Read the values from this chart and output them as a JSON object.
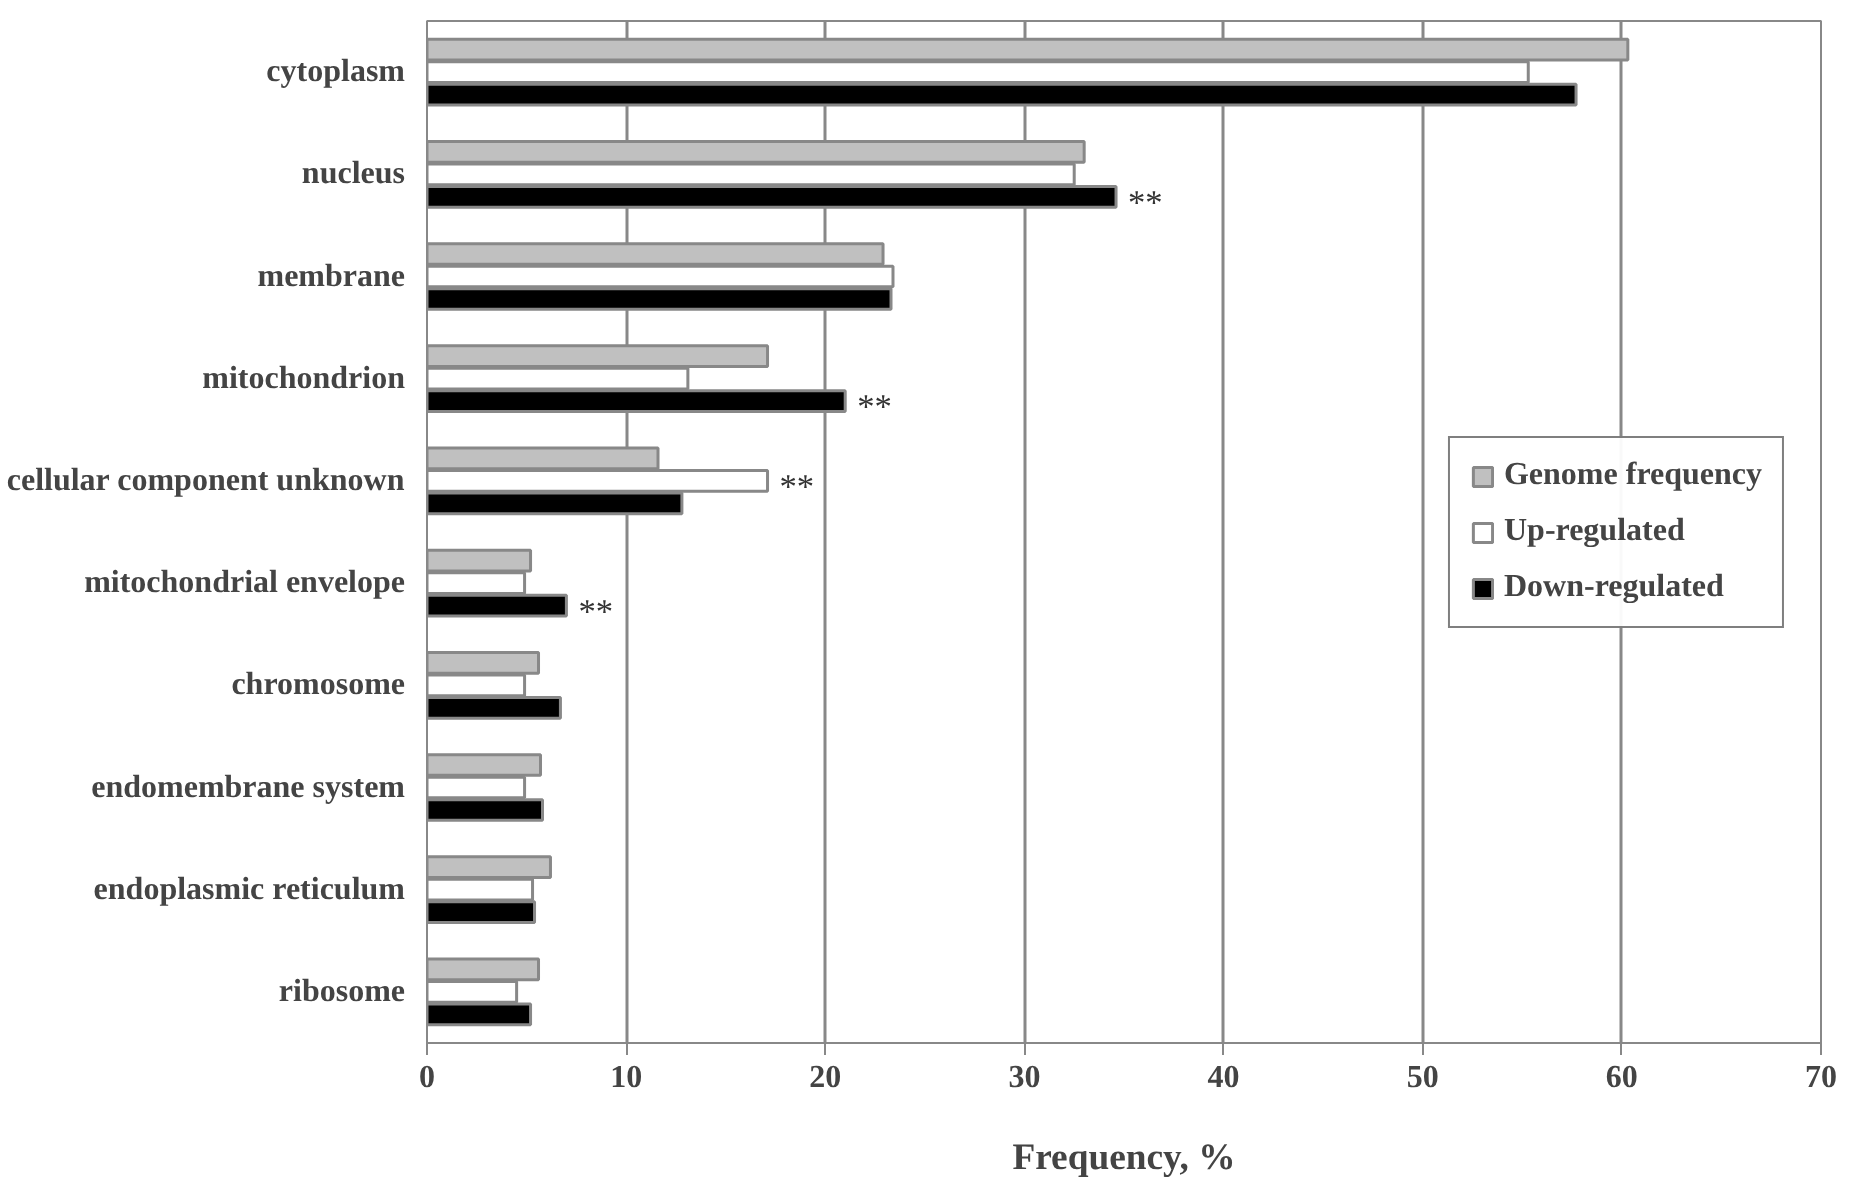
{
  "chart_data": {
    "type": "bar",
    "orientation": "horizontal",
    "xlabel": "Frequency, %",
    "categories": [
      "cytoplasm",
      "nucleus",
      "membrane",
      "mitochondrion",
      "cellular component unknown",
      "mitochondrial envelope",
      "chromosome",
      "endomembrane system",
      "endoplasmic reticulum",
      "ribosome"
    ],
    "series": [
      {
        "name": "Genome frequency",
        "color": "#c0c0c0",
        "values": [
          60.3,
          33.0,
          22.9,
          17.1,
          11.6,
          5.2,
          5.6,
          5.7,
          6.2,
          5.6
        ]
      },
      {
        "name": "Up-regulated",
        "color": "#ffffff",
        "values": [
          55.3,
          32.5,
          23.4,
          13.1,
          17.1,
          4.9,
          4.9,
          4.9,
          5.3,
          4.5
        ],
        "value_labels": [
          null,
          null,
          null,
          null,
          "**",
          null,
          null,
          null,
          null,
          null
        ]
      },
      {
        "name": "Down-regulated",
        "color": "#000000",
        "values": [
          57.7,
          34.6,
          23.3,
          21.0,
          12.8,
          7.0,
          6.7,
          5.8,
          5.4,
          5.2
        ],
        "value_labels": [
          null,
          "**",
          null,
          "**",
          null,
          "**",
          null,
          null,
          null,
          null
        ]
      }
    ],
    "xlim": [
      0,
      70
    ],
    "xticks": [
      0,
      10,
      20,
      30,
      40,
      50,
      60,
      70
    ],
    "grid": "x",
    "legend": "right"
  }
}
